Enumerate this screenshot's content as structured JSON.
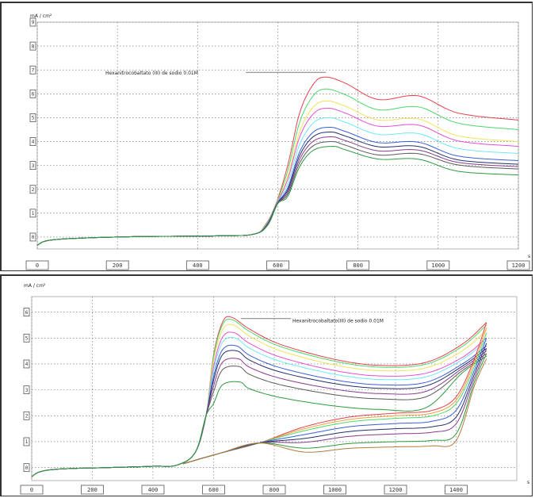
{
  "chart_data": [
    {
      "type": "line",
      "y_unit_label": "mA / cm²",
      "x_unit_label": "s",
      "annotation": "Hexanitrocobaltato (III) de sodio 0.01M",
      "xlim": [
        0,
        1200
      ],
      "ylim": [
        -0.5,
        9
      ],
      "x_ticks": [
        0,
        200,
        400,
        600,
        800,
        1000,
        1200
      ],
      "x_tick_labels": [
        "0",
        "200",
        "400",
        "600",
        "800",
        "1000",
        "1200"
      ],
      "y_ticks": [
        0,
        1,
        2,
        3,
        4,
        5,
        6,
        7,
        8,
        9
      ],
      "grid": true,
      "series": [
        {
          "color": "#e8404c",
          "peak": 6.7,
          "end": 4.9
        },
        {
          "color": "#4cd86a",
          "peak": 6.2,
          "end": 4.5
        },
        {
          "color": "#f0e25a",
          "peak": 5.7,
          "end": 4.0
        },
        {
          "color": "#e64fd1",
          "peak": 5.4,
          "end": 3.8
        },
        {
          "color": "#6fe7f5",
          "peak": 5.0,
          "end": 3.5
        },
        {
          "color": "#3a5fd8",
          "peak": 4.6,
          "end": 3.2
        },
        {
          "color": "#22306a",
          "peak": 4.4,
          "end": 3.05
        },
        {
          "color": "#8b3b8e",
          "peak": 4.2,
          "end": 2.95
        },
        {
          "color": "#5a5a5a",
          "peak": 4.0,
          "end": 2.85
        },
        {
          "color": "#2e9a3d",
          "peak": 3.8,
          "end": 2.6
        }
      ]
    },
    {
      "type": "line",
      "y_unit_label": "mA / cm²",
      "x_unit_label": "s",
      "annotation": "Hexanitrocobaltato(III) de sodio 0.01M",
      "xlim": [
        0,
        1600
      ],
      "ylim": [
        -0.5,
        6.6
      ],
      "x_ticks": [
        0,
        200,
        400,
        600,
        800,
        1000,
        1200,
        1400
      ],
      "x_tick_labels": [
        "0",
        "200",
        "400",
        "600",
        "800",
        "1000",
        "1200",
        "1400"
      ],
      "y_ticks": [
        0,
        1,
        2,
        3,
        4,
        5,
        6
      ],
      "grid": true,
      "forward_series": [
        {
          "color": "#e8404c",
          "peak": 5.8,
          "end": 5.6
        },
        {
          "color": "#4cd86a",
          "peak": 5.7,
          "end": 5.5
        },
        {
          "color": "#f0e25a",
          "peak": 5.5,
          "end": 5.3
        },
        {
          "color": "#e64fd1",
          "peak": 5.2,
          "end": 5.0
        },
        {
          "color": "#6fe7f5",
          "peak": 5.0,
          "end": 4.9
        },
        {
          "color": "#3a5fd8",
          "peak": 4.7,
          "end": 4.7
        },
        {
          "color": "#22306a",
          "peak": 4.5,
          "end": 4.6
        },
        {
          "color": "#8b3b8e",
          "peak": 4.2,
          "end": 4.5
        },
        {
          "color": "#5a5a5a",
          "peak": 3.9,
          "end": 4.4
        },
        {
          "color": "#2e9a3d",
          "peak": 3.3,
          "end": 4.3
        }
      ],
      "return_series": [
        {
          "color": "#e8404c",
          "plateau": 2.1,
          "end": 5.6
        },
        {
          "color": "#f0a23a",
          "plateau": 2.0,
          "end": 5.4
        },
        {
          "color": "#4cd86a",
          "plateau": 1.9,
          "end": 5.2
        },
        {
          "color": "#3a5fd8",
          "plateau": 1.7,
          "end": 5.0
        },
        {
          "color": "#22306a",
          "plateau": 1.5,
          "end": 4.8
        },
        {
          "color": "#8b3b8e",
          "plateau": 1.3,
          "end": 4.6
        },
        {
          "color": "#2e9a3d",
          "plateau": 1.0,
          "end": 4.4
        },
        {
          "color": "#b37a3a",
          "plateau": 0.8,
          "end": 4.2
        }
      ]
    }
  ]
}
